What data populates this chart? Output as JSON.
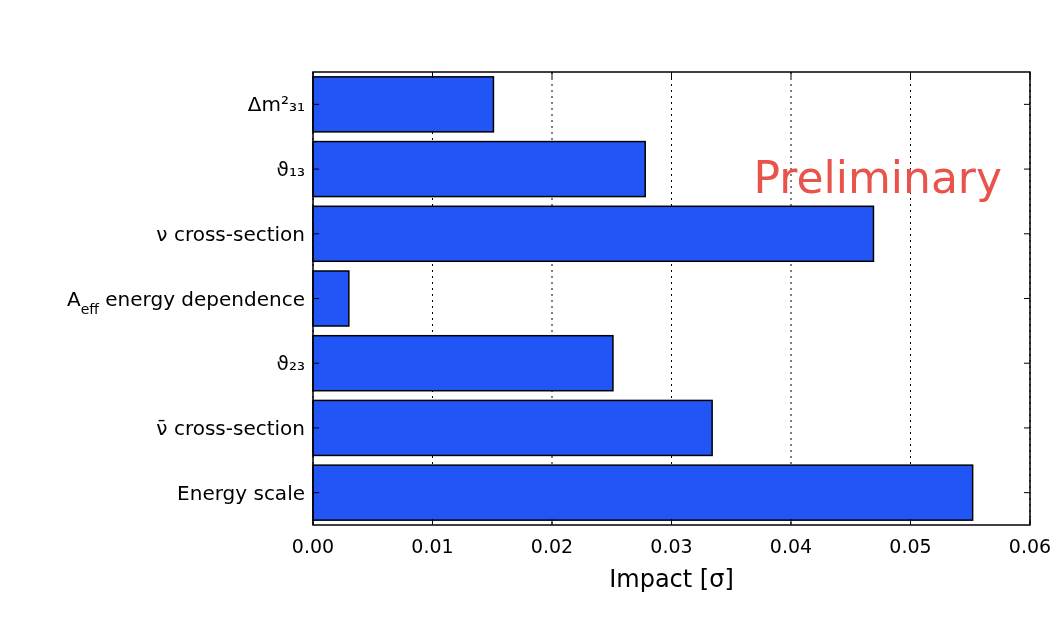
{
  "chart_data": {
    "type": "bar",
    "orientation": "horizontal",
    "categories": [
      "Δm²₃₁",
      "ϑ₁₃",
      "ν cross-section",
      "A$_{eff}$ energy dependence",
      "ϑ₂₃",
      "ν̄ cross-section",
      "Energy scale"
    ],
    "values": [
      0.0151,
      0.0278,
      0.0469,
      0.003,
      0.0251,
      0.0334,
      0.0552
    ],
    "color": "#2255f5",
    "xlim": [
      0,
      0.06
    ],
    "xticks": [
      {
        "value": 0,
        "label": "0.00"
      },
      0.01,
      0.02,
      0.03,
      0.04,
      0.05,
      0.06
    ],
    "xlabel": "Impact [σ]",
    "grid": "x",
    "annotations": [
      "Preliminary"
    ]
  }
}
